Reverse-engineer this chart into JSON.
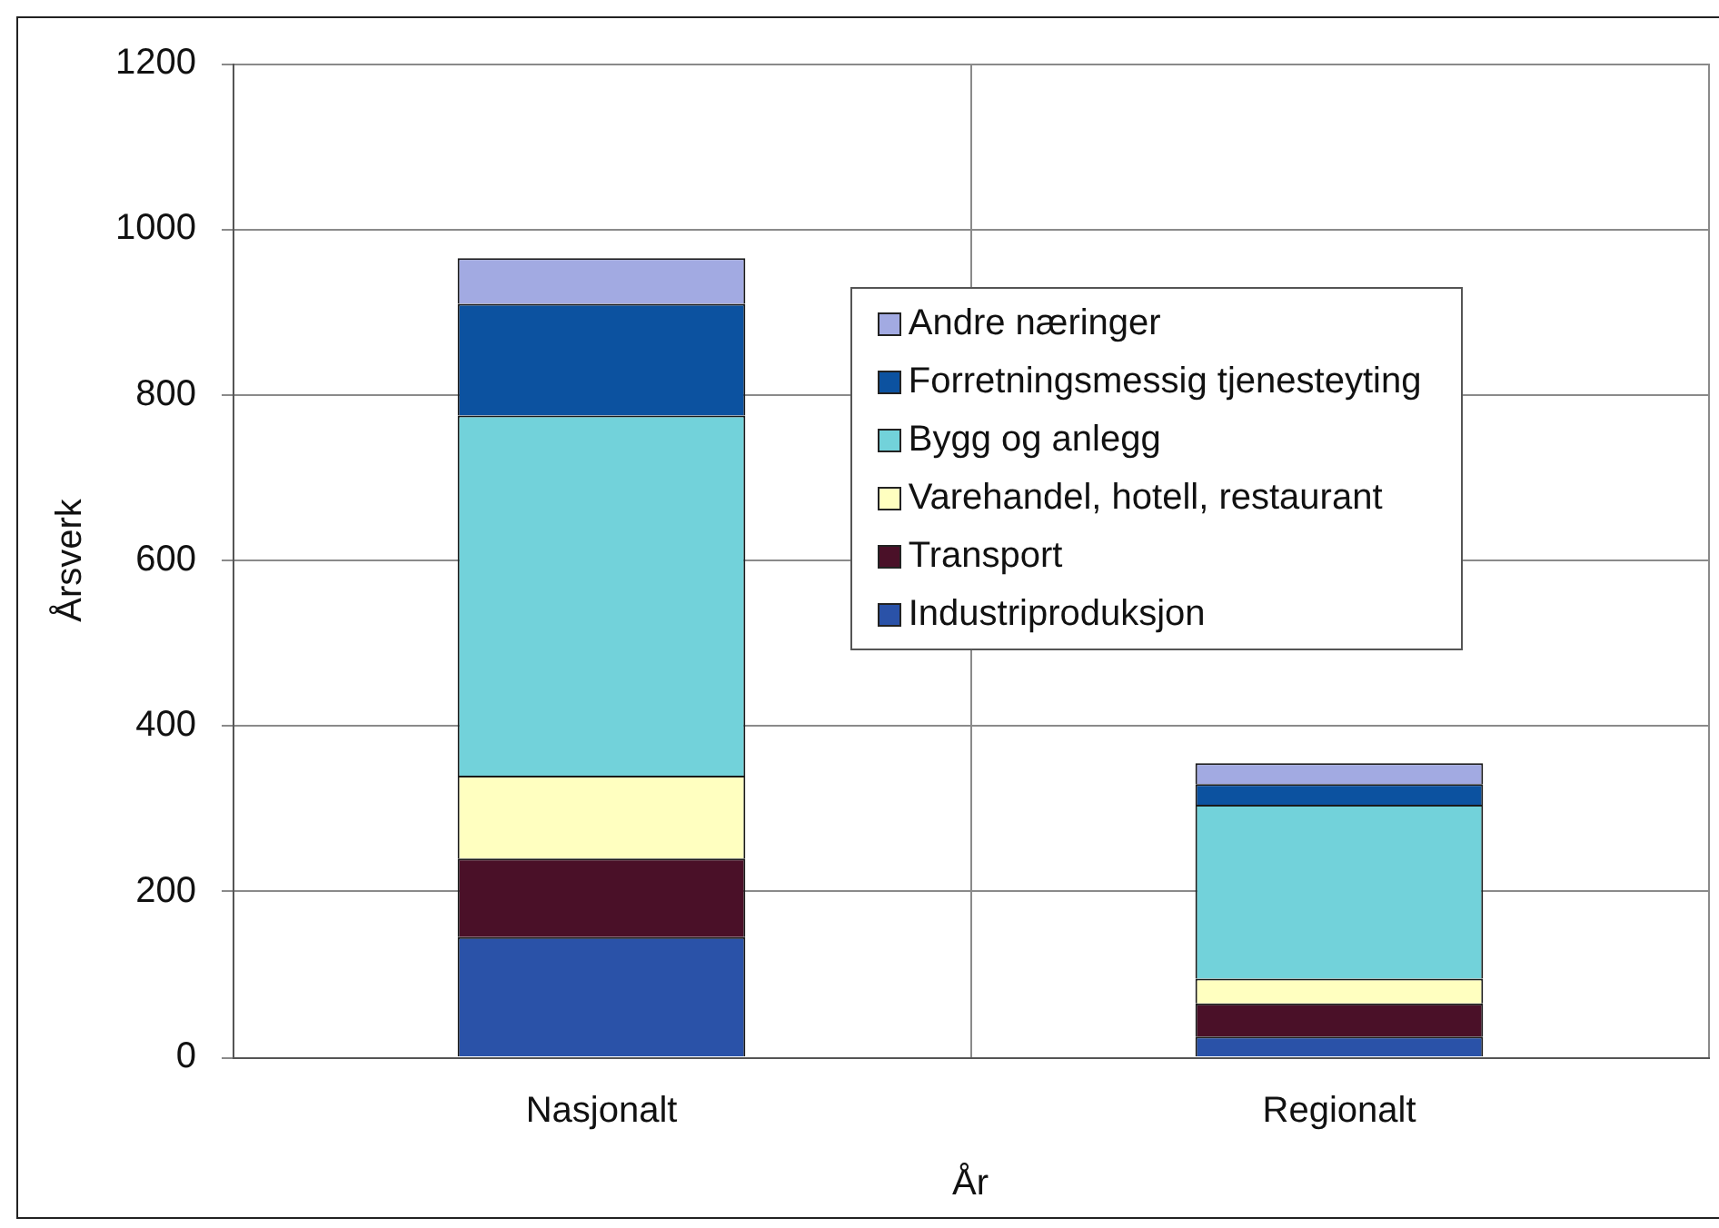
{
  "chart_data": {
    "type": "bar",
    "stacked": true,
    "categories": [
      "Nasjonalt",
      "Regionalt"
    ],
    "xlabel": "År",
    "ylabel": "Årsverk",
    "ylim": [
      0,
      1200
    ],
    "yticks": [
      0,
      200,
      400,
      600,
      800,
      1000,
      1200
    ],
    "grid": true,
    "legend": "top right",
    "series": [
      {
        "name": "Industriproduksjon",
        "color": "#2a52a8",
        "values": [
          145,
          25
        ]
      },
      {
        "name": "Transport",
        "color": "#4a1028",
        "values": [
          95,
          40
        ]
      },
      {
        "name": "Varehandel, hotell, restaurant",
        "color": "#ffffc0",
        "values": [
          100,
          30
        ]
      },
      {
        "name": "Bygg og anlegg",
        "color": "#72d2da",
        "values": [
          435,
          210
        ]
      },
      {
        "name": "Forretningsmessig tjenesteyting",
        "color": "#0c52a0",
        "values": [
          135,
          25
        ]
      },
      {
        "name": "Andre næringer",
        "color": "#a2aae2",
        "values": [
          55,
          25
        ]
      }
    ]
  }
}
